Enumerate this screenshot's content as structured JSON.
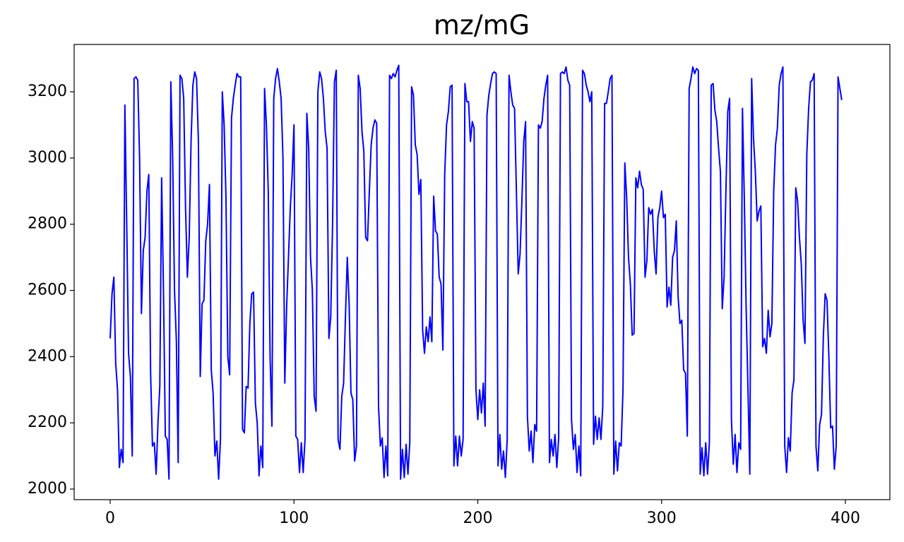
{
  "chart_data": {
    "type": "line",
    "title": "mz/mG",
    "series": [
      {
        "color": "#0000ff",
        "values": [
          2455,
          2590,
          2640,
          2380,
          2300,
          2065,
          2120,
          2080,
          3160,
          2800,
          2410,
          2340,
          2100,
          3240,
          3245,
          3235,
          3000,
          2530,
          2720,
          2760,
          2900,
          2950,
          2350,
          2130,
          2140,
          2045,
          2200,
          2310,
          2940,
          2600,
          2160,
          2150,
          2030,
          3230,
          3000,
          2600,
          2450,
          2080,
          3250,
          3240,
          3180,
          2850,
          2640,
          2760,
          3050,
          3220,
          3260,
          3240,
          3050,
          2340,
          2560,
          2570,
          2750,
          2800,
          2920,
          2360,
          2290,
          2100,
          2145,
          2030,
          2150,
          3200,
          3100,
          2880,
          2400,
          2345,
          3120,
          3180,
          3220,
          3255,
          3245,
          3245,
          2180,
          2170,
          2310,
          2305,
          2500,
          2590,
          2595,
          2260,
          2200,
          2040,
          2130,
          2065,
          3210,
          3100,
          2900,
          2400,
          2190,
          3180,
          3240,
          3270,
          3230,
          3180,
          3000,
          2320,
          2550,
          2700,
          2850,
          2950,
          3100,
          2160,
          2150,
          2050,
          2140,
          2050,
          2150,
          3135,
          3030,
          2700,
          2600,
          2280,
          2235,
          3200,
          3260,
          3240,
          3180,
          3080,
          3030,
          2455,
          2520,
          2800,
          3230,
          3265,
          2150,
          2120,
          2280,
          2320,
          2520,
          2700,
          2560,
          2290,
          2270,
          2085,
          2130,
          3250,
          3210,
          3080,
          3020,
          2760,
          2750,
          2900,
          3040,
          3090,
          3115,
          3105,
          2250,
          2130,
          2155,
          2035,
          2130,
          2040,
          3250,
          3240,
          3255,
          3245,
          3265,
          3280,
          2030,
          2120,
          2035,
          2135,
          2045,
          2140,
          3215,
          3190,
          3040,
          3010,
          2890,
          2935,
          2480,
          2410,
          2490,
          2445,
          2520,
          2445,
          2885,
          2780,
          2770,
          2640,
          2620,
          2420,
          2950,
          3100,
          3140,
          3215,
          3220,
          2070,
          2160,
          2070,
          2160,
          2100,
          2150,
          3225,
          3170,
          3170,
          3050,
          3110,
          3090,
          2300,
          2210,
          2300,
          2230,
          2320,
          2190,
          3130,
          3190,
          3225,
          3255,
          3260,
          3255,
          2070,
          2165,
          2060,
          2115,
          2035,
          2150,
          3250,
          3200,
          3160,
          3150,
          2900,
          2650,
          2710,
          2870,
          3050,
          3110,
          2220,
          2115,
          2175,
          2080,
          2195,
          2175,
          3100,
          3090,
          3110,
          3180,
          3220,
          3250,
          2080,
          2150,
          2100,
          2165,
          2065,
          2155,
          3255,
          3260,
          3255,
          3275,
          3235,
          3220,
          2210,
          2120,
          2165,
          2050,
          2130,
          2040,
          3265,
          3255,
          3220,
          3200,
          3170,
          3200,
          2135,
          2220,
          2150,
          2215,
          2150,
          2250,
          3165,
          3165,
          3200,
          3240,
          3250,
          2045,
          2145,
          2055,
          2140,
          2130,
          2300,
          2985,
          2880,
          2700,
          2620,
          2465,
          2470,
          2940,
          2910,
          2960,
          2920,
          2905,
          2640,
          2690,
          2850,
          2830,
          2845,
          2720,
          2650,
          2820,
          2850,
          2900,
          2820,
          2830,
          2550,
          2610,
          2555,
          2700,
          2720,
          2810,
          2580,
          2500,
          2510,
          2360,
          2350,
          2160,
          3210,
          3240,
          3275,
          3255,
          3270,
          3265,
          2045,
          2125,
          2040,
          2140,
          2045,
          2140,
          3220,
          3225,
          3145,
          3110,
          3030,
          2960,
          2545,
          2640,
          2900,
          3140,
          3180,
          2210,
          2075,
          2165,
          2050,
          2140,
          2120,
          3150,
          2880,
          2550,
          2300,
          2045,
          3240,
          3060,
          2960,
          2810,
          2840,
          2855,
          2430,
          2455,
          2410,
          2540,
          2460,
          2500,
          2900,
          3040,
          3090,
          3220,
          3255,
          3275,
          2130,
          2050,
          2155,
          2115,
          2290,
          2330,
          2910,
          2870,
          2760,
          2680,
          2510,
          2440,
          3010,
          3150,
          3230,
          3235,
          3255,
          2130,
          2055,
          2195,
          2225,
          2460,
          2590,
          2570,
          2400,
          2185,
          2190,
          2060,
          2130,
          3245,
          3210,
          3175
        ]
      }
    ],
    "xlim": [
      -19.6,
      424.2
    ],
    "xticks": [
      0,
      100,
      200,
      300,
      400
    ],
    "ylim": [
      1968,
      3343
    ],
    "yticks": [
      2000,
      2200,
      2400,
      2600,
      2800,
      3000,
      3200
    ]
  }
}
